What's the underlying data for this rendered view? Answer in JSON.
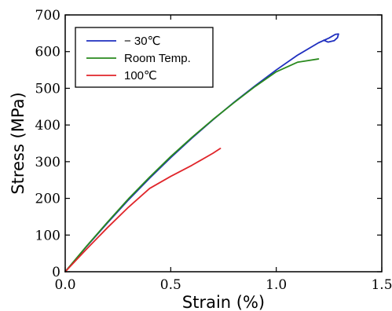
{
  "chart_data": {
    "type": "line",
    "title": "",
    "xlabel": "Strain (%)",
    "ylabel": "Stress (MPa)",
    "xlim": [
      0,
      1.5
    ],
    "ylim": [
      0,
      700
    ],
    "xticks": [
      0.0,
      0.5,
      1.0,
      1.5
    ],
    "xtick_labels": [
      "0.0",
      "0.5",
      "1.0",
      "1.5"
    ],
    "yticks": [
      0,
      100,
      200,
      300,
      400,
      500,
      600,
      700
    ],
    "ytick_labels": [
      "0",
      "100",
      "200",
      "300",
      "400",
      "500",
      "600",
      "700"
    ],
    "grid": false,
    "legend_position": "top-left",
    "series": [
      {
        "name": "− 30℃",
        "color": "#1f2fbf",
        "points": [
          [
            0.0,
            0
          ],
          [
            0.1,
            68
          ],
          [
            0.2,
            133
          ],
          [
            0.3,
            196
          ],
          [
            0.4,
            255
          ],
          [
            0.5,
            311
          ],
          [
            0.6,
            364
          ],
          [
            0.7,
            414
          ],
          [
            0.8,
            462
          ],
          [
            0.9,
            507
          ],
          [
            1.0,
            550
          ],
          [
            1.1,
            590
          ],
          [
            1.2,
            624
          ],
          [
            1.25,
            637
          ],
          [
            1.28,
            647
          ],
          [
            1.295,
            648
          ],
          [
            1.29,
            638
          ],
          [
            1.275,
            630
          ],
          [
            1.245,
            626
          ],
          [
            1.225,
            631
          ]
        ]
      },
      {
        "name": "Room Temp.",
        "color": "#2a8a1e",
        "points": [
          [
            0.0,
            0
          ],
          [
            0.1,
            69
          ],
          [
            0.2,
            135
          ],
          [
            0.3,
            199
          ],
          [
            0.4,
            258
          ],
          [
            0.5,
            314
          ],
          [
            0.6,
            366
          ],
          [
            0.7,
            415
          ],
          [
            0.8,
            461
          ],
          [
            0.9,
            505
          ],
          [
            1.0,
            545
          ],
          [
            1.1,
            571
          ],
          [
            1.2,
            580
          ]
        ]
      },
      {
        "name": "100℃",
        "color": "#e0252a",
        "points": [
          [
            0.0,
            0
          ],
          [
            0.1,
            61
          ],
          [
            0.2,
            120
          ],
          [
            0.3,
            176
          ],
          [
            0.4,
            227
          ],
          [
            0.5,
            260
          ],
          [
            0.6,
            290
          ],
          [
            0.7,
            323
          ],
          [
            0.735,
            336
          ]
        ]
      }
    ]
  }
}
